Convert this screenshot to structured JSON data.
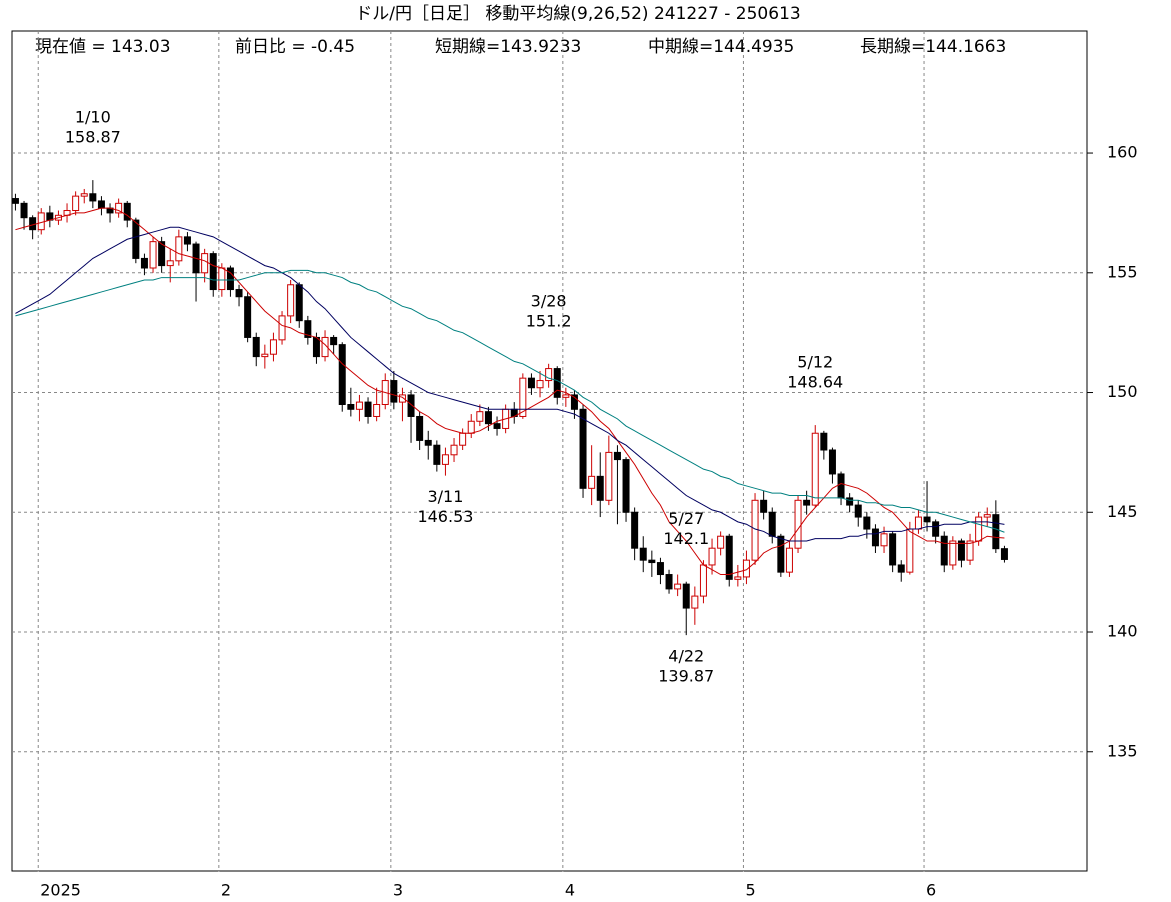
{
  "chart_data": {
    "type": "candlestick",
    "title": "ドル/円［日足］ 移動平均線(9,26,52)  241227 - 250613",
    "info": [
      "現在値 = 143.03",
      "前日比 = -0.45",
      "短期線=143.9233",
      "中期線=144.4935",
      "長期線=144.1663"
    ],
    "categories": [
      null,
      null,
      null,
      "2025",
      null,
      null,
      null,
      null,
      null,
      null,
      null,
      null,
      null,
      null,
      null,
      null,
      null,
      null,
      null,
      null,
      null,
      null,
      null,
      null,
      "2",
      null,
      null,
      null,
      null,
      null,
      null,
      null,
      null,
      null,
      null,
      null,
      null,
      null,
      null,
      null,
      null,
      null,
      null,
      null,
      "3",
      null,
      null,
      null,
      null,
      null,
      null,
      null,
      null,
      null,
      null,
      null,
      null,
      null,
      null,
      null,
      null,
      null,
      null,
      null,
      "4",
      null,
      null,
      null,
      null,
      null,
      null,
      null,
      null,
      null,
      null,
      null,
      null,
      null,
      null,
      null,
      null,
      null,
      null,
      null,
      null,
      "5",
      null,
      null,
      null,
      null,
      null,
      null,
      null,
      null,
      null,
      null,
      null,
      null,
      null,
      null,
      null,
      null,
      null,
      null,
      null,
      null,
      "6",
      null,
      null,
      null,
      null,
      null,
      null,
      null,
      null,
      null
    ],
    "open": [
      158.1,
      157.9,
      157.3,
      156.8,
      157.5,
      157.2,
      157.4,
      157.6,
      158.2,
      158.3,
      158.0,
      157.7,
      157.5,
      157.9,
      157.2,
      155.6,
      155.2,
      156.3,
      155.3,
      155.5,
      156.5,
      156.2,
      155.0,
      155.8,
      154.3,
      155.2,
      154.3,
      154.0,
      152.3,
      151.5,
      151.6,
      152.2,
      153.2,
      154.5,
      153.0,
      152.3,
      151.5,
      152.3,
      152.0,
      149.5,
      149.3,
      149.6,
      149.0,
      149.5,
      150.5,
      149.6,
      149.9,
      149.0,
      148.0,
      147.8,
      147.0,
      147.4,
      147.8,
      148.3,
      148.8,
      149.2,
      148.7,
      148.5,
      149.3,
      149.0,
      150.6,
      150.2,
      150.5,
      151.0,
      149.8,
      149.9,
      149.3,
      146.0,
      146.5,
      145.5,
      147.5,
      147.2,
      145.0,
      143.5,
      143.0,
      142.9,
      142.4,
      141.8,
      142.0,
      141.0,
      141.5,
      142.8,
      143.5,
      144.0,
      142.2,
      142.3,
      143.0,
      145.5,
      145.0,
      144.0,
      142.5,
      143.5,
      145.5,
      145.3,
      148.3,
      147.6,
      146.6,
      145.6,
      145.3,
      144.8,
      144.3,
      143.6,
      144.1,
      142.8,
      142.5,
      144.3,
      144.8,
      144.6,
      144.0,
      142.8,
      143.8,
      143.0,
      143.8,
      144.8,
      144.9,
      143.48
    ],
    "high": [
      158.3,
      158.0,
      157.4,
      157.7,
      157.8,
      157.6,
      157.9,
      158.4,
      158.5,
      158.87,
      158.2,
      157.9,
      158.1,
      158.0,
      157.3,
      155.8,
      156.5,
      156.5,
      156.0,
      156.8,
      156.7,
      156.3,
      156.0,
      155.9,
      155.4,
      155.3,
      154.5,
      154.2,
      152.5,
      152.0,
      152.5,
      153.4,
      154.7,
      154.6,
      153.2,
      152.5,
      152.6,
      152.4,
      152.1,
      150.2,
      149.9,
      149.8,
      150.2,
      150.8,
      150.9,
      150.2,
      150.1,
      149.2,
      148.4,
      148.0,
      147.7,
      148.1,
      148.5,
      149.1,
      149.5,
      149.4,
      149.0,
      149.5,
      149.6,
      150.8,
      150.8,
      150.9,
      151.2,
      151.1,
      150.2,
      150.1,
      149.5,
      147.8,
      147.5,
      148.2,
      147.8,
      147.3,
      145.2,
      144.0,
      143.4,
      143.1,
      142.6,
      142.4,
      142.1,
      141.9,
      143.0,
      143.9,
      144.2,
      144.1,
      142.8,
      143.4,
      145.8,
      145.9,
      145.2,
      144.1,
      143.8,
      145.7,
      145.9,
      148.64,
      148.4,
      147.7,
      146.7,
      145.8,
      145.5,
      145.0,
      144.5,
      144.4,
      144.2,
      143.0,
      144.6,
      145.1,
      146.3,
      144.7,
      144.2,
      144.0,
      143.9,
      144.1,
      145.0,
      145.2,
      145.5,
      143.6
    ],
    "low": [
      157.6,
      156.8,
      156.4,
      156.6,
      156.9,
      157.0,
      157.1,
      157.4,
      157.9,
      157.7,
      157.4,
      157.1,
      157.3,
      156.9,
      155.4,
      154.9,
      155.0,
      155.0,
      154.6,
      155.3,
      155.9,
      153.8,
      154.6,
      154.0,
      154.0,
      154.0,
      153.6,
      152.1,
      151.1,
      151.0,
      151.3,
      152.0,
      152.9,
      152.7,
      152.0,
      151.2,
      151.3,
      151.6,
      149.2,
      149.0,
      148.8,
      148.7,
      148.8,
      149.3,
      149.3,
      148.8,
      147.9,
      147.6,
      147.2,
      146.7,
      146.53,
      147.1,
      147.6,
      148.1,
      148.6,
      148.4,
      148.2,
      148.3,
      148.7,
      148.9,
      149.9,
      149.8,
      150.2,
      149.5,
      149.4,
      148.9,
      145.6,
      145.3,
      144.8,
      145.3,
      144.5,
      144.6,
      143.0,
      142.5,
      142.3,
      142.0,
      141.6,
      141.5,
      139.87,
      140.3,
      141.2,
      142.4,
      143.2,
      141.9,
      141.9,
      142.0,
      142.8,
      144.7,
      143.7,
      142.3,
      142.3,
      143.3,
      144.9,
      145.2,
      147.2,
      146.2,
      145.3,
      145.0,
      144.4,
      143.9,
      143.3,
      143.3,
      142.5,
      142.1,
      142.4,
      144.1,
      144.2,
      143.7,
      142.5,
      142.6,
      142.7,
      142.8,
      143.6,
      144.4,
      143.3,
      142.9
    ],
    "close": [
      157.9,
      157.3,
      156.8,
      157.5,
      157.2,
      157.4,
      157.6,
      158.2,
      158.3,
      158.0,
      157.7,
      157.5,
      157.9,
      157.2,
      155.6,
      155.2,
      156.3,
      155.3,
      155.5,
      156.5,
      156.2,
      155.0,
      155.8,
      154.3,
      155.2,
      154.3,
      154.0,
      152.3,
      151.5,
      151.6,
      152.2,
      153.2,
      154.5,
      153.0,
      152.3,
      151.5,
      152.3,
      152.0,
      149.5,
      149.3,
      149.6,
      149.0,
      149.5,
      150.5,
      149.6,
      149.9,
      149.0,
      148.0,
      147.8,
      147.0,
      147.4,
      147.8,
      148.3,
      148.8,
      149.2,
      148.7,
      148.5,
      149.3,
      149.0,
      150.6,
      150.2,
      150.5,
      151.0,
      149.8,
      149.9,
      149.3,
      146.0,
      146.5,
      145.5,
      147.5,
      147.2,
      145.0,
      143.5,
      143.0,
      142.9,
      142.4,
      141.8,
      142.0,
      141.0,
      141.5,
      142.8,
      143.5,
      144.0,
      142.2,
      142.3,
      143.0,
      145.5,
      145.0,
      144.0,
      142.5,
      143.5,
      145.5,
      145.3,
      148.3,
      147.6,
      146.6,
      145.6,
      145.3,
      144.8,
      144.3,
      143.6,
      144.1,
      142.8,
      142.5,
      144.3,
      144.8,
      144.6,
      144.0,
      142.8,
      143.8,
      143.0,
      143.8,
      144.8,
      144.9,
      143.48,
      143.03
    ],
    "up_color": "#cc0000",
    "down_color": "#000000",
    "ma": [
      {
        "color": "#cc0000",
        "values": [
          156.8,
          156.9,
          157.0,
          157.1,
          157.2,
          157.3,
          157.4,
          157.5,
          157.5,
          157.6,
          157.7,
          157.7,
          157.6,
          157.4,
          157.1,
          156.8,
          156.5,
          156.2,
          156.0,
          155.8,
          155.7,
          155.6,
          155.5,
          155.3,
          155.2,
          155.0,
          154.6,
          154.2,
          153.8,
          153.4,
          153.1,
          152.8,
          152.7,
          152.5,
          152.4,
          152.3,
          152.0,
          151.6,
          151.2,
          150.9,
          150.6,
          150.3,
          150.1,
          150.0,
          149.9,
          149.8,
          149.5,
          149.2,
          149.0,
          148.7,
          148.5,
          148.4,
          148.3,
          148.3,
          148.4,
          148.6,
          148.8,
          148.9,
          149.0,
          149.2,
          149.4,
          149.6,
          149.8,
          150.1,
          150.0,
          149.8,
          149.5,
          149.2,
          148.8,
          148.5,
          148.0,
          147.5,
          147.0,
          146.4,
          145.8,
          145.3,
          144.6,
          144.2,
          143.8,
          143.3,
          142.8,
          142.6,
          142.4,
          142.4,
          142.5,
          142.6,
          142.9,
          143.3,
          143.5,
          143.6,
          143.8,
          144.3,
          144.8,
          145.2,
          145.6,
          146.0,
          146.2,
          146.1,
          146.0,
          145.8,
          145.5,
          145.2,
          145.0,
          144.6,
          144.2,
          144.0,
          143.8,
          143.8,
          143.7,
          143.7,
          143.7,
          143.7,
          143.8,
          144.0,
          143.95,
          143.9233
        ]
      },
      {
        "color": "#000060",
        "values": [
          153.3,
          153.5,
          153.7,
          153.9,
          154.1,
          154.4,
          154.7,
          155.0,
          155.3,
          155.6,
          155.8,
          156.0,
          156.2,
          156.4,
          156.5,
          156.6,
          156.7,
          156.8,
          156.9,
          156.9,
          156.8,
          156.7,
          156.6,
          156.5,
          156.3,
          156.1,
          155.9,
          155.7,
          155.5,
          155.3,
          155.2,
          155.0,
          154.8,
          154.5,
          154.2,
          153.8,
          153.5,
          153.1,
          152.7,
          152.3,
          152.0,
          151.7,
          151.4,
          151.1,
          150.8,
          150.6,
          150.4,
          150.2,
          150.0,
          149.9,
          149.8,
          149.7,
          149.6,
          149.5,
          149.4,
          149.3,
          149.3,
          149.3,
          149.3,
          149.3,
          149.3,
          149.3,
          149.3,
          149.3,
          149.2,
          149.1,
          148.9,
          148.7,
          148.5,
          148.3,
          148.0,
          147.8,
          147.5,
          147.2,
          146.9,
          146.6,
          146.3,
          146.0,
          145.7,
          145.5,
          145.3,
          145.1,
          145.0,
          144.8,
          144.6,
          144.5,
          144.3,
          144.2,
          144.0,
          143.9,
          143.8,
          143.8,
          143.8,
          143.9,
          143.9,
          143.9,
          143.9,
          144.0,
          144.0,
          144.1,
          144.1,
          144.2,
          144.2,
          144.2,
          144.3,
          144.3,
          144.4,
          144.4,
          144.5,
          144.5,
          144.5,
          144.6,
          144.6,
          144.6,
          144.55,
          144.4935
        ]
      },
      {
        "color": "#008080",
        "values": [
          153.2,
          153.3,
          153.4,
          153.5,
          153.6,
          153.7,
          153.8,
          153.9,
          154.0,
          154.1,
          154.2,
          154.3,
          154.4,
          154.5,
          154.6,
          154.7,
          154.7,
          154.8,
          154.8,
          154.8,
          154.8,
          154.8,
          154.8,
          154.7,
          154.7,
          154.7,
          154.7,
          154.8,
          154.9,
          155.0,
          155.0,
          155.0,
          155.1,
          155.1,
          155.1,
          155.0,
          155.0,
          154.9,
          154.8,
          154.6,
          154.5,
          154.3,
          154.2,
          154.0,
          153.8,
          153.6,
          153.5,
          153.3,
          153.1,
          153.0,
          152.8,
          152.6,
          152.5,
          152.3,
          152.1,
          151.9,
          151.7,
          151.5,
          151.3,
          151.2,
          151.0,
          150.8,
          150.6,
          150.5,
          150.3,
          150.1,
          149.8,
          149.6,
          149.3,
          149.1,
          148.9,
          148.6,
          148.4,
          148.2,
          148.0,
          147.8,
          147.6,
          147.4,
          147.2,
          147.0,
          146.8,
          146.7,
          146.5,
          146.4,
          146.2,
          146.1,
          146.0,
          145.9,
          145.8,
          145.8,
          145.7,
          145.7,
          145.7,
          145.6,
          145.6,
          145.6,
          145.6,
          145.5,
          145.5,
          145.4,
          145.4,
          145.3,
          145.3,
          145.2,
          145.2,
          145.1,
          145.0,
          145.0,
          144.9,
          144.8,
          144.7,
          144.6,
          144.5,
          144.4,
          144.3,
          144.1663
        ]
      }
    ],
    "annotations": [
      {
        "date": "1/10",
        "value": 158.87
      },
      {
        "date": "3/11",
        "value": 146.53
      },
      {
        "date": "3/28",
        "value": 151.2
      },
      {
        "date": "4/22",
        "value": 139.87
      },
      {
        "date": "5/12",
        "value": 148.64
      },
      {
        "date": "5/27",
        "value": 142.1
      }
    ],
    "ylim": [
      130,
      165
    ],
    "yticks": [
      135,
      140,
      145,
      150,
      155,
      160
    ],
    "grid": true
  }
}
